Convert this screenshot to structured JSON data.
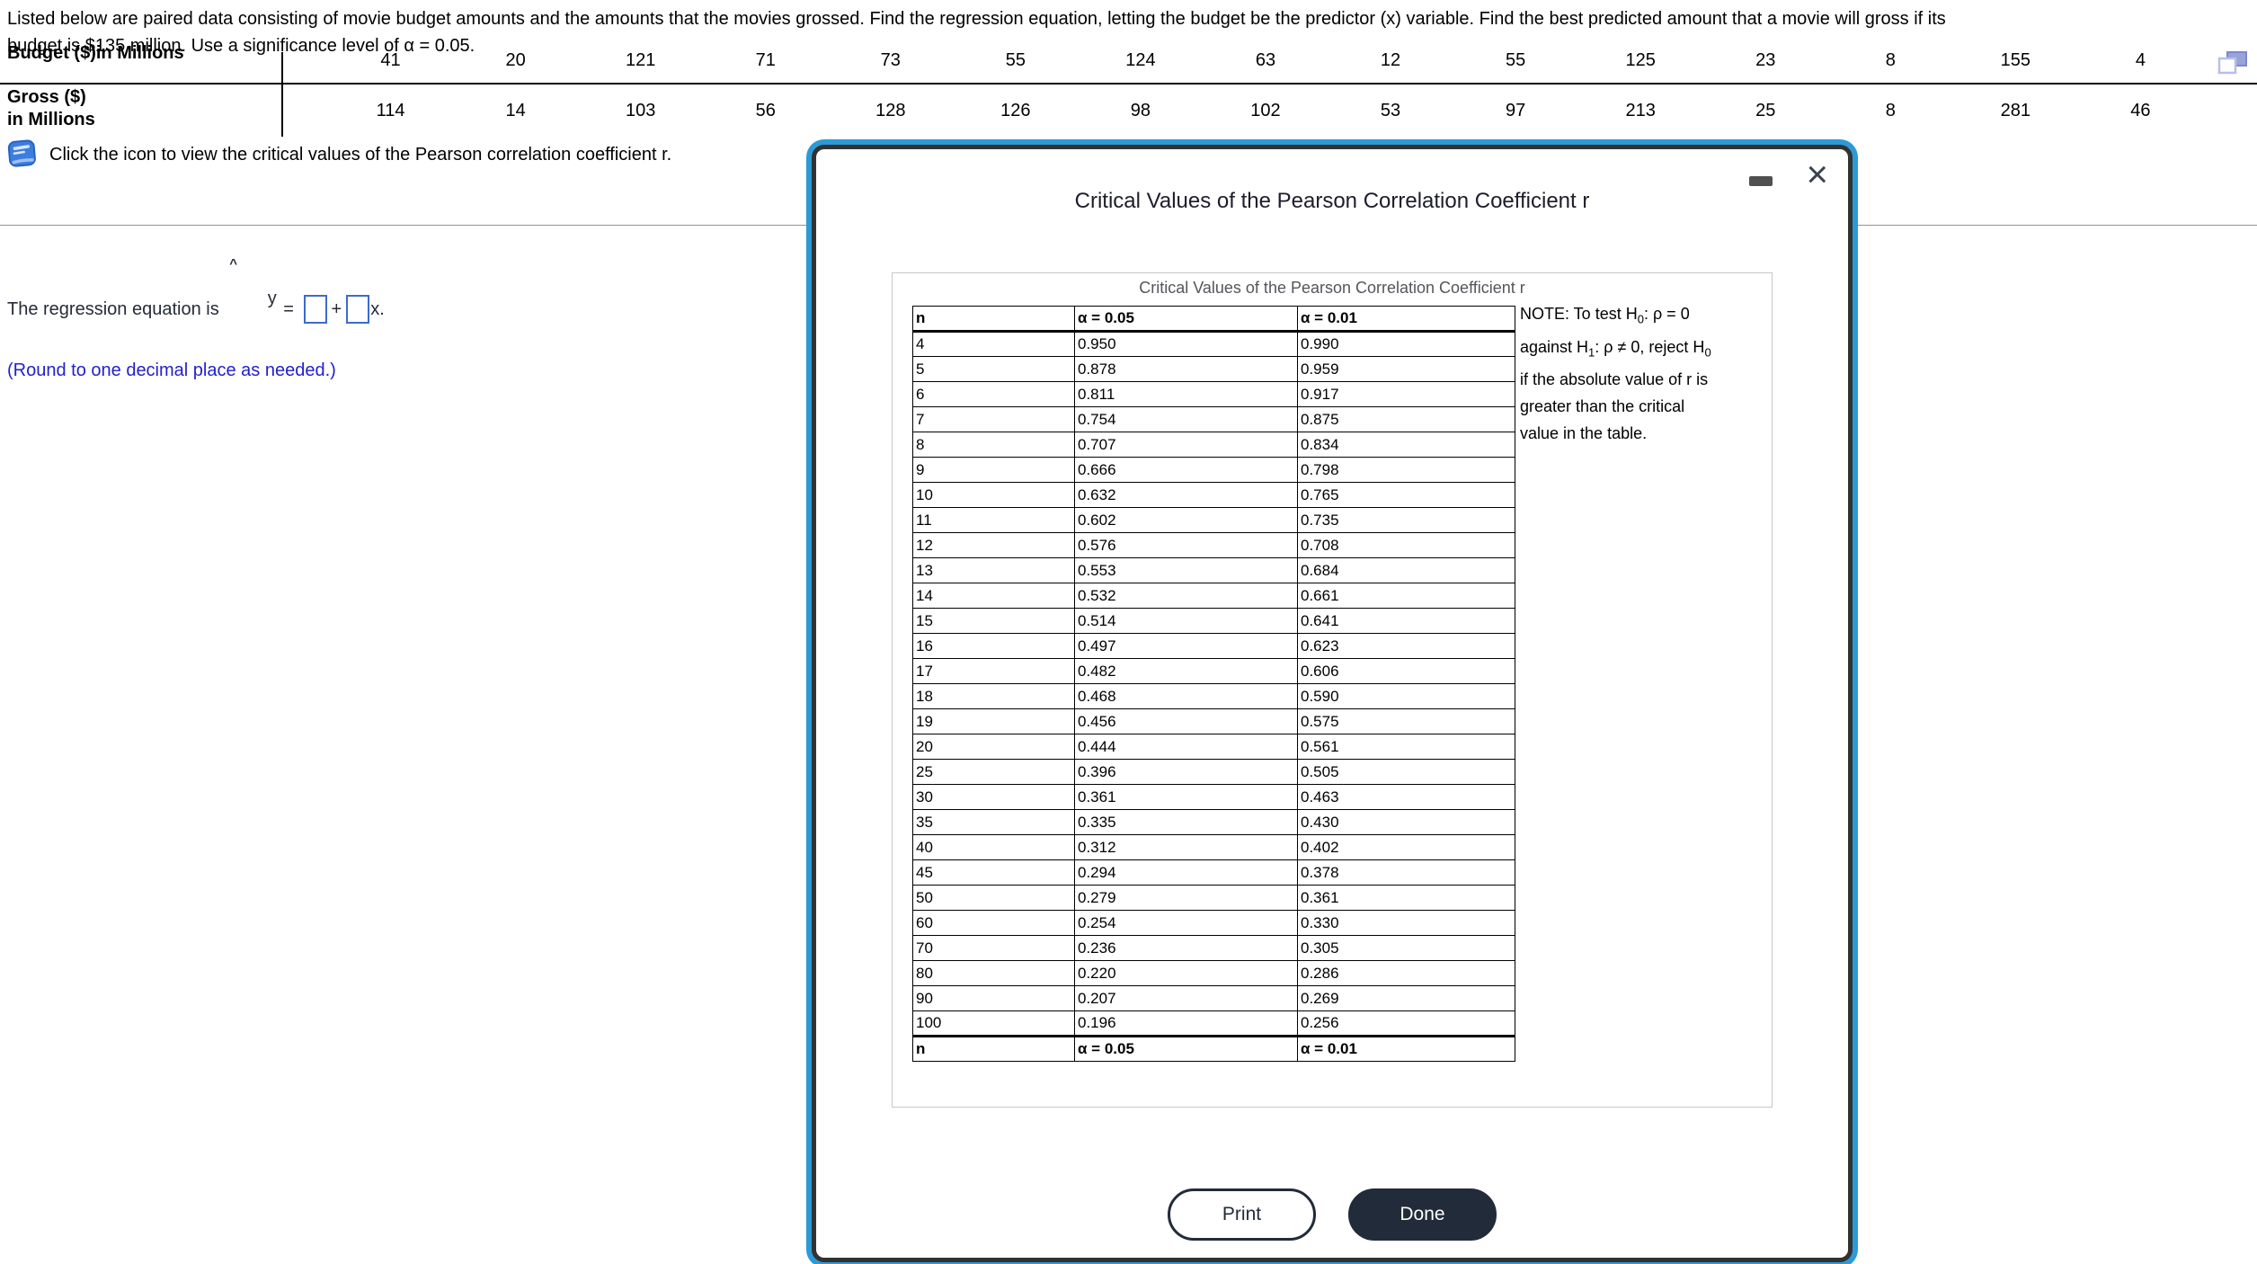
{
  "problem": {
    "line1": "Listed below are paired data consisting of movie budget amounts and the amounts that the movies grossed. Find the regression equation, letting the budget be the predictor (x) variable. Find the best predicted amount that a movie will gross if its",
    "line2": "budget is $135 million. Use a significance level of α = 0.05."
  },
  "data_table": {
    "budget_label": "Budget ($)in Millions",
    "gross_label_line1": "Gross ($)",
    "gross_label_line2": "in Millions",
    "budget_values": [
      "41",
      "20",
      "121",
      "71",
      "73",
      "55",
      "124",
      "63",
      "12",
      "55",
      "125",
      "23",
      "8",
      "155",
      "4"
    ],
    "gross_values": [
      "114",
      "14",
      "103",
      "56",
      "128",
      "126",
      "98",
      "102",
      "53",
      "97",
      "213",
      "25",
      "8",
      "281",
      "46"
    ]
  },
  "instruction": {
    "text": "Click the icon to view the critical values of the Pearson correlation coefficient r."
  },
  "answer": {
    "prefix": "The regression equation is ",
    "y": "y",
    "hat": "^",
    "equals": " = ",
    "plus": "+",
    "suffix": "x.",
    "box1_value": "",
    "box2_value": "",
    "hint": "(Round to one decimal place as needed.)"
  },
  "modal": {
    "title": "Critical Values of the Pearson Correlation Coefficient r",
    "close_glyph": "×",
    "panel": {
      "table_title": "Critical Values of the Pearson Correlation Coefficient r",
      "col_n": "n",
      "col_a05": "α = 0.05",
      "col_a01": "α = 0.01",
      "rows": [
        {
          "n": "4",
          "a05": "0.950",
          "a01": "0.990"
        },
        {
          "n": "5",
          "a05": "0.878",
          "a01": "0.959"
        },
        {
          "n": "6",
          "a05": "0.811",
          "a01": "0.917"
        },
        {
          "n": "7",
          "a05": "0.754",
          "a01": "0.875"
        },
        {
          "n": "8",
          "a05": "0.707",
          "a01": "0.834"
        },
        {
          "n": "9",
          "a05": "0.666",
          "a01": "0.798"
        },
        {
          "n": "10",
          "a05": "0.632",
          "a01": "0.765"
        },
        {
          "n": "11",
          "a05": "0.602",
          "a01": "0.735"
        },
        {
          "n": "12",
          "a05": "0.576",
          "a01": "0.708"
        },
        {
          "n": "13",
          "a05": "0.553",
          "a01": "0.684"
        },
        {
          "n": "14",
          "a05": "0.532",
          "a01": "0.661"
        },
        {
          "n": "15",
          "a05": "0.514",
          "a01": "0.641"
        },
        {
          "n": "16",
          "a05": "0.497",
          "a01": "0.623"
        },
        {
          "n": "17",
          "a05": "0.482",
          "a01": "0.606"
        },
        {
          "n": "18",
          "a05": "0.468",
          "a01": "0.590"
        },
        {
          "n": "19",
          "a05": "0.456",
          "a01": "0.575"
        },
        {
          "n": "20",
          "a05": "0.444",
          "a01": "0.561"
        },
        {
          "n": "25",
          "a05": "0.396",
          "a01": "0.505"
        },
        {
          "n": "30",
          "a05": "0.361",
          "a01": "0.463"
        },
        {
          "n": "35",
          "a05": "0.335",
          "a01": "0.430"
        },
        {
          "n": "40",
          "a05": "0.312",
          "a01": "0.402"
        },
        {
          "n": "45",
          "a05": "0.294",
          "a01": "0.378"
        },
        {
          "n": "50",
          "a05": "0.279",
          "a01": "0.361"
        },
        {
          "n": "60",
          "a05": "0.254",
          "a01": "0.330"
        },
        {
          "n": "70",
          "a05": "0.236",
          "a01": "0.305"
        },
        {
          "n": "80",
          "a05": "0.220",
          "a01": "0.286"
        },
        {
          "n": "90",
          "a05": "0.207",
          "a01": "0.269"
        },
        {
          "n": "100",
          "a05": "0.196",
          "a01": "0.256"
        }
      ],
      "footer": {
        "n": "n",
        "a05": "α = 0.05",
        "a01": "α = 0.01"
      },
      "note_lines": [
        [
          {
            "t": "NOTE: To test H"
          },
          {
            "sub": "0"
          },
          {
            "t": ": ρ = 0"
          }
        ],
        [
          {
            "t": "against H"
          },
          {
            "sub": "1"
          },
          {
            "t": ": ρ ≠ 0, reject H"
          },
          {
            "sub": "0"
          }
        ],
        [
          {
            "t": "if the absolute value of r is"
          }
        ],
        [
          {
            "t": "greater than the critical"
          }
        ],
        [
          {
            "t": "value in the table."
          }
        ]
      ]
    },
    "print_button": "Print",
    "done_button": "Done"
  },
  "colors": {
    "modal_border_blue": "#2c9ad6",
    "modal_border_dark": "#323232",
    "button_dark": "#222b3a",
    "hint_blue": "#2121cc",
    "answer_box_border": "#3e6bc9",
    "book_icon_blue": "#3b7de0",
    "popout_icon_periwinkle": "#98a3d9",
    "page_divider_gray": "#8b93a3"
  }
}
